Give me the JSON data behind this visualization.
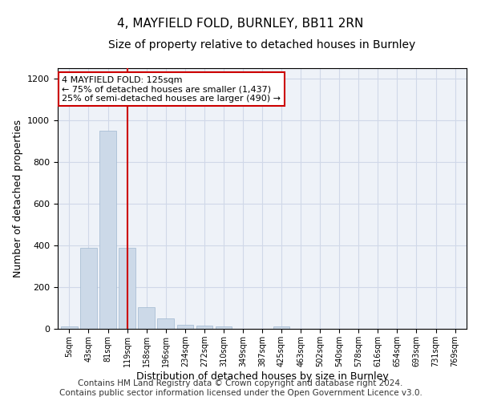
{
  "title": "4, MAYFIELD FOLD, BURNLEY, BB11 2RN",
  "subtitle": "Size of property relative to detached houses in Burnley",
  "xlabel": "Distribution of detached houses by size in Burnley",
  "ylabel": "Number of detached properties",
  "categories": [
    "5sqm",
    "43sqm",
    "81sqm",
    "119sqm",
    "158sqm",
    "196sqm",
    "234sqm",
    "272sqm",
    "310sqm",
    "349sqm",
    "387sqm",
    "425sqm",
    "463sqm",
    "502sqm",
    "540sqm",
    "578sqm",
    "616sqm",
    "654sqm",
    "693sqm",
    "731sqm",
    "769sqm"
  ],
  "values": [
    10,
    390,
    950,
    390,
    105,
    50,
    20,
    15,
    10,
    0,
    0,
    10,
    0,
    0,
    0,
    0,
    0,
    0,
    0,
    0,
    0
  ],
  "bar_color": "#ccd9e8",
  "bar_edge_color": "#a0b8d0",
  "vline_x": 3,
  "vline_color": "#cc0000",
  "annotation_text": "4 MAYFIELD FOLD: 125sqm\n← 75% of detached houses are smaller (1,437)\n25% of semi-detached houses are larger (490) →",
  "annotation_box_color": "#ffffff",
  "annotation_box_edge": "#cc0000",
  "ylim": [
    0,
    1250
  ],
  "yticks": [
    0,
    200,
    400,
    600,
    800,
    1000,
    1200
  ],
  "grid_color": "#d0d8e8",
  "bg_color": "#eef2f8",
  "footer": "Contains HM Land Registry data © Crown copyright and database right 2024.\nContains public sector information licensed under the Open Government Licence v3.0.",
  "title_fontsize": 11,
  "subtitle_fontsize": 10,
  "xlabel_fontsize": 9,
  "ylabel_fontsize": 9,
  "footer_fontsize": 7.5,
  "ann_fontsize": 8
}
